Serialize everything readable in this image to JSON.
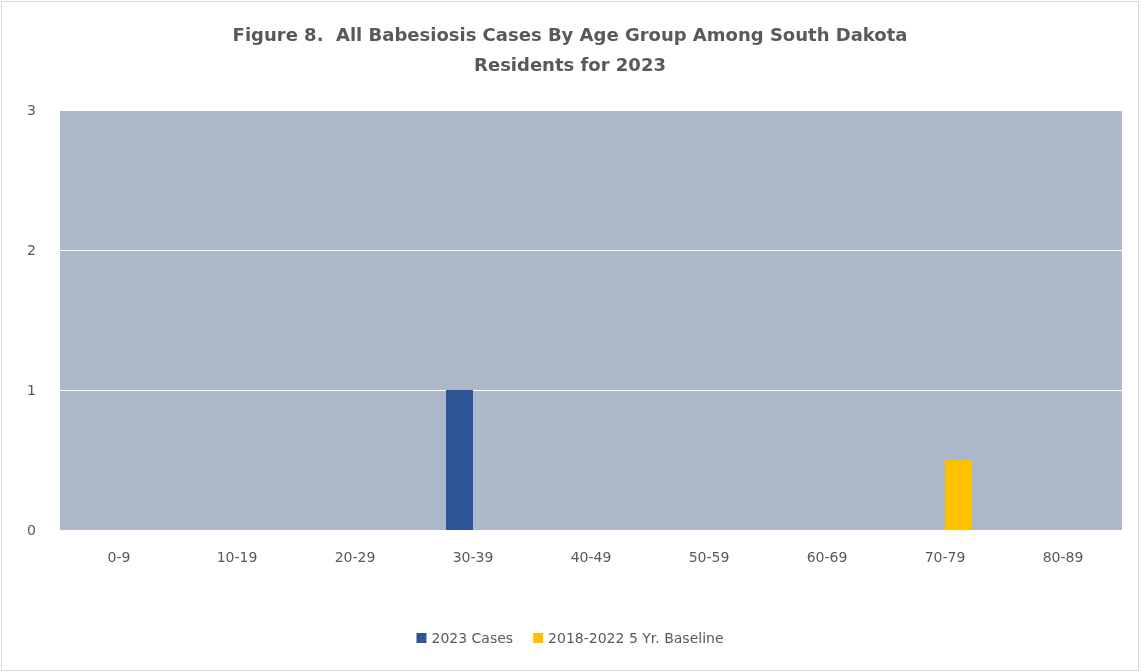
{
  "chart_data": {
    "type": "bar",
    "title": "Figure 8.  All Babesiosis Cases By Age Group Among South Dakota\nResidents for 2023",
    "categories": [
      "0-9",
      "10-19",
      "20-29",
      "30-39",
      "40-49",
      "50-59",
      "60-69",
      "70-79",
      "80-89"
    ],
    "series": [
      {
        "name": "2023 Cases",
        "color": "#2f5597",
        "values": [
          0,
          0,
          0,
          1,
          0,
          0,
          0,
          0,
          0
        ]
      },
      {
        "name": "2018-2022 5 Yr. Baseline",
        "color": "#ffc000",
        "values": [
          0,
          0,
          0,
          0,
          0,
          0,
          0,
          0.5,
          0
        ]
      }
    ],
    "ylim": [
      0,
      3
    ],
    "yticks": [
      0,
      1,
      2,
      3
    ],
    "grid": "y",
    "legend": "bottom"
  }
}
